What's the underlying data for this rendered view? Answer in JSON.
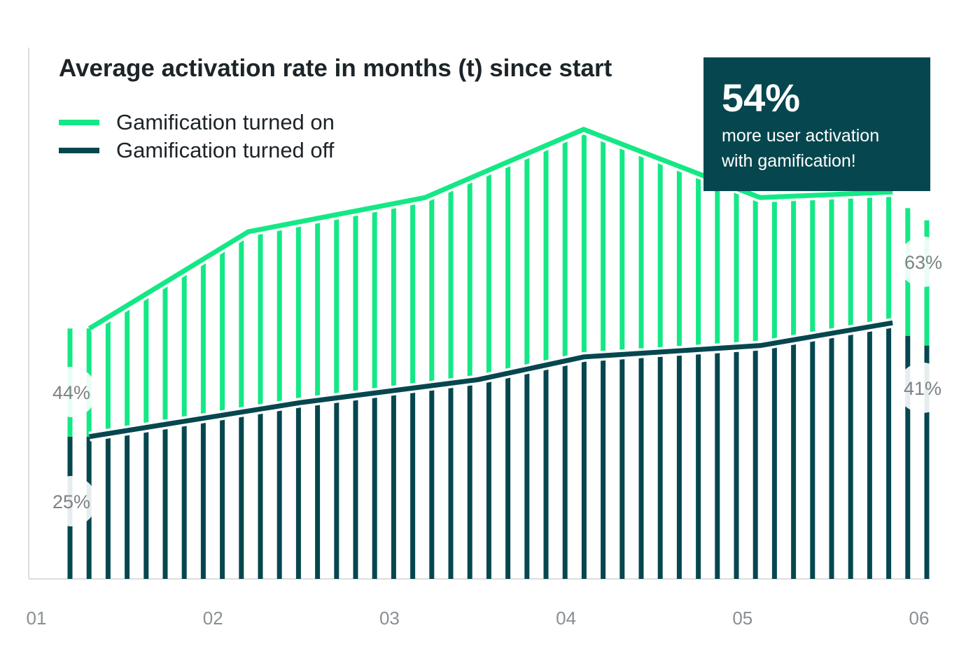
{
  "colors": {
    "on": "#14e885",
    "off": "#06474f",
    "axis": "#dddddd",
    "tick_text": "#8a8f92",
    "label_text": "#7d8285",
    "callout_bg": "#06474f",
    "title_text": "#1c2428"
  },
  "chart_data": {
    "type": "bar",
    "title": "Average activation rate in months (t) since start",
    "x_tick_labels": [
      "01",
      "02",
      "03",
      "04",
      "05",
      "06"
    ],
    "x_range": [
      1,
      6
    ],
    "ylim": [
      0,
      100
    ],
    "series": [
      {
        "name": "Gamification turned on",
        "points": [
          [
            1.3,
            44
          ],
          [
            2.2,
            61
          ],
          [
            3.2,
            67
          ],
          [
            4.1,
            79
          ],
          [
            5.1,
            67
          ],
          [
            5.85,
            68
          ],
          [
            6,
            63
          ]
        ],
        "end_label": "63%",
        "start_label": "44%"
      },
      {
        "name": "Gamification turned off",
        "points": [
          [
            1.3,
            25
          ],
          [
            2.5,
            31
          ],
          [
            3.5,
            35
          ],
          [
            4.1,
            39
          ],
          [
            5.1,
            41
          ],
          [
            5.85,
            45
          ],
          [
            6,
            41
          ]
        ],
        "end_label": "41%",
        "start_label": "25%"
      }
    ],
    "bar_count": 46
  },
  "callout": {
    "headline": "54%",
    "text_line1": "more user activation",
    "text_line2": "with gamification!"
  }
}
